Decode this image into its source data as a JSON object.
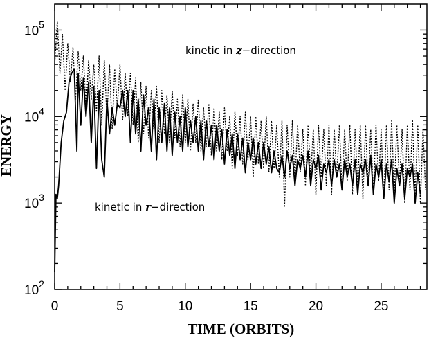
{
  "chart_data": {
    "type": "line",
    "xlabel": "TIME (ORBITS)",
    "ylabel": "ENERGY",
    "xlim": [
      0,
      28.5
    ],
    "ylim_log10": [
      2,
      5.3
    ],
    "yscale": "log",
    "grid": false,
    "x_ticks": [
      {
        "value": 0,
        "label": "0"
      },
      {
        "value": 5,
        "label": "5"
      },
      {
        "value": 10,
        "label": "10"
      },
      {
        "value": 15,
        "label": "15"
      },
      {
        "value": 20,
        "label": "20"
      },
      {
        "value": 25,
        "label": "25"
      }
    ],
    "y_ticks": [
      {
        "exp": 2,
        "base": "10",
        "sup": "2"
      },
      {
        "exp": 3,
        "base": "10",
        "sup": "3"
      },
      {
        "exp": 4,
        "base": "10",
        "sup": "4"
      },
      {
        "exp": 5,
        "base": "10",
        "sup": "5"
      }
    ],
    "annotations": {
      "z": {
        "prefix": "kinetic in ",
        "var": "z",
        "suffix": "−direction"
      },
      "r": {
        "prefix": "kinetic in ",
        "var": "r",
        "suffix": "−direction"
      }
    },
    "series": [
      {
        "id": "z",
        "style": "dotted",
        "x": [
          0,
          0.2,
          0.4,
          0.6,
          0.8,
          1.0,
          1.2,
          1.4,
          1.6,
          1.8,
          2.0,
          2.2,
          2.4,
          2.6,
          2.8,
          3.0,
          3.2,
          3.4,
          3.6,
          3.8,
          4.0,
          4.2,
          4.4,
          4.6,
          4.8,
          5.0,
          5.2,
          5.4,
          5.6,
          5.8,
          6.0,
          6.2,
          6.4,
          6.6,
          6.8,
          7.0,
          7.2,
          7.4,
          7.6,
          7.8,
          8.0,
          8.2,
          8.4,
          8.6,
          8.8,
          9.0,
          9.2,
          9.4,
          9.6,
          9.8,
          10.0,
          10.2,
          10.4,
          10.6,
          10.8,
          11.0,
          11.2,
          11.4,
          11.6,
          11.8,
          12.0,
          12.2,
          12.4,
          12.6,
          12.8,
          13.0,
          13.2,
          13.4,
          13.6,
          13.8,
          14.0,
          14.2,
          14.4,
          14.6,
          14.8,
          15.0,
          15.2,
          15.4,
          15.6,
          15.8,
          16.0,
          16.2,
          16.4,
          16.6,
          16.8,
          17.0,
          17.2,
          17.4,
          17.6,
          17.8,
          18.0,
          18.2,
          18.4,
          18.6,
          18.8,
          19.0,
          19.2,
          19.4,
          19.6,
          19.8,
          20.0,
          20.2,
          20.4,
          20.6,
          20.8,
          21.0,
          21.2,
          21.4,
          21.6,
          21.8,
          22.0,
          22.2,
          22.4,
          22.6,
          22.8,
          23.0,
          23.2,
          23.4,
          23.6,
          23.8,
          24.0,
          24.2,
          24.4,
          24.6,
          24.8,
          25.0,
          25.2,
          25.4,
          25.6,
          25.8,
          26.0,
          26.2,
          26.4,
          26.6,
          26.8,
          27.0,
          27.2,
          27.4,
          27.6,
          27.8,
          28.0,
          28.2,
          28.4
        ],
        "log10y": [
          4.6,
          5.1,
          4.5,
          4.95,
          4.3,
          4.85,
          4.4,
          4.8,
          4.2,
          4.75,
          4.3,
          4.7,
          4.1,
          4.65,
          4.2,
          4.6,
          4.05,
          4.7,
          3.9,
          4.65,
          4.0,
          4.6,
          3.85,
          4.55,
          4.1,
          4.6,
          3.95,
          4.5,
          4.0,
          4.5,
          3.9,
          4.45,
          3.7,
          4.4,
          3.8,
          4.35,
          3.75,
          4.3,
          3.85,
          4.35,
          3.7,
          4.3,
          3.8,
          4.25,
          3.7,
          4.3,
          3.75,
          4.2,
          3.65,
          4.25,
          3.7,
          4.2,
          3.6,
          4.15,
          3.7,
          4.2,
          3.6,
          4.1,
          3.65,
          4.15,
          3.55,
          4.1,
          3.6,
          4.05,
          3.5,
          4.1,
          3.6,
          4.0,
          3.4,
          4.05,
          3.55,
          4.0,
          3.45,
          4.05,
          3.5,
          4.0,
          3.3,
          4.0,
          3.45,
          3.95,
          3.4,
          4.0,
          3.35,
          3.95,
          3.4,
          3.9,
          3.3,
          3.95,
          2.95,
          3.9,
          3.3,
          3.95,
          3.25,
          3.9,
          3.35,
          3.85,
          3.2,
          3.9,
          3.3,
          3.85,
          3.1,
          3.9,
          3.3,
          3.85,
          3.2,
          3.9,
          3.1,
          3.85,
          3.3,
          3.9,
          3.15,
          3.85,
          3.25,
          3.9,
          3.1,
          3.85,
          3.2,
          3.9,
          3.05,
          3.9,
          3.2,
          3.85,
          3.1,
          3.9,
          3.25,
          3.85,
          3.05,
          3.9,
          3.15,
          3.95,
          3.1,
          3.9,
          3.2,
          3.85,
          3.0,
          3.9,
          3.15,
          3.95,
          3.1,
          3.9,
          3.0,
          3.85,
          3.15
        ]
      },
      {
        "id": "r",
        "style": "solid",
        "x": [
          0,
          0.1,
          0.2,
          0.3,
          0.5,
          0.7,
          0.9,
          1.1,
          1.3,
          1.5,
          1.7,
          1.8,
          2.0,
          2.2,
          2.4,
          2.6,
          2.8,
          3.0,
          3.2,
          3.4,
          3.6,
          3.8,
          4.0,
          4.2,
          4.4,
          4.6,
          4.8,
          5.0,
          5.2,
          5.4,
          5.6,
          5.8,
          6.0,
          6.2,
          6.4,
          6.6,
          6.8,
          7.0,
          7.2,
          7.4,
          7.6,
          7.8,
          8.0,
          8.2,
          8.4,
          8.6,
          8.8,
          9.0,
          9.2,
          9.4,
          9.6,
          9.8,
          10.0,
          10.2,
          10.4,
          10.6,
          10.8,
          11.0,
          11.2,
          11.4,
          11.6,
          11.8,
          12.0,
          12.2,
          12.4,
          12.6,
          12.8,
          13.0,
          13.2,
          13.4,
          13.6,
          13.8,
          14.0,
          14.2,
          14.4,
          14.6,
          14.8,
          15.0,
          15.2,
          15.4,
          15.6,
          15.8,
          16.0,
          16.2,
          16.4,
          16.6,
          16.8,
          17.0,
          17.2,
          17.4,
          17.6,
          17.8,
          18.0,
          18.2,
          18.4,
          18.6,
          18.8,
          19.0,
          19.2,
          19.4,
          19.6,
          19.8,
          20.0,
          20.2,
          20.4,
          20.6,
          20.8,
          21.0,
          21.2,
          21.4,
          21.6,
          21.8,
          22.0,
          22.2,
          22.4,
          22.6,
          22.8,
          23.0,
          23.2,
          23.4,
          23.6,
          23.8,
          24.0,
          24.2,
          24.4,
          24.6,
          24.8,
          25.0,
          25.2,
          25.4,
          25.6,
          25.8,
          26.0,
          26.2,
          26.4,
          26.6,
          26.8,
          27.0,
          27.2,
          27.4,
          27.6,
          27.8,
          28.0,
          28.2,
          28.4
        ],
        "log10y": [
          2.2,
          3.1,
          3.05,
          3.2,
          3.7,
          3.95,
          4.05,
          4.4,
          4.5,
          4.55,
          3.6,
          4.5,
          3.9,
          4.45,
          4.0,
          4.4,
          3.7,
          4.35,
          3.4,
          4.3,
          3.5,
          3.3,
          4.2,
          3.8,
          4.1,
          3.9,
          4.15,
          4.1,
          4.3,
          4.0,
          4.3,
          3.7,
          4.3,
          3.8,
          4.2,
          3.6,
          4.25,
          3.9,
          4.1,
          3.6,
          4.2,
          3.5,
          4.1,
          3.7,
          4.15,
          3.6,
          4.1,
          3.55,
          4.05,
          3.7,
          4.0,
          3.6,
          4.1,
          3.65,
          3.95,
          3.7,
          4.0,
          3.6,
          3.95,
          3.5,
          3.95,
          3.65,
          3.9,
          3.5,
          3.9,
          3.6,
          3.85,
          3.45,
          3.85,
          3.55,
          3.8,
          3.4,
          3.8,
          3.5,
          3.75,
          3.35,
          3.7,
          3.5,
          3.75,
          3.45,
          3.7,
          3.4,
          3.7,
          3.45,
          3.65,
          3.35,
          3.6,
          3.4,
          3.35,
          3.55,
          3.3,
          3.6,
          3.4,
          3.55,
          3.2,
          3.5,
          3.4,
          3.55,
          3.3,
          3.6,
          3.2,
          3.5,
          3.4,
          3.55,
          3.15,
          3.45,
          3.35,
          3.5,
          3.2,
          3.5,
          3.3,
          3.45,
          3.15,
          3.5,
          3.3,
          3.45,
          3.2,
          3.5,
          3.1,
          3.45,
          3.35,
          3.5,
          3.2,
          3.55,
          3.1,
          3.45,
          3.3,
          3.5,
          3.05,
          3.45,
          3.25,
          3.5,
          3.0,
          3.4,
          3.2,
          3.45,
          3.05,
          3.4,
          3.3,
          3.45,
          3.0,
          3.35,
          3.1
        ]
      }
    ]
  }
}
